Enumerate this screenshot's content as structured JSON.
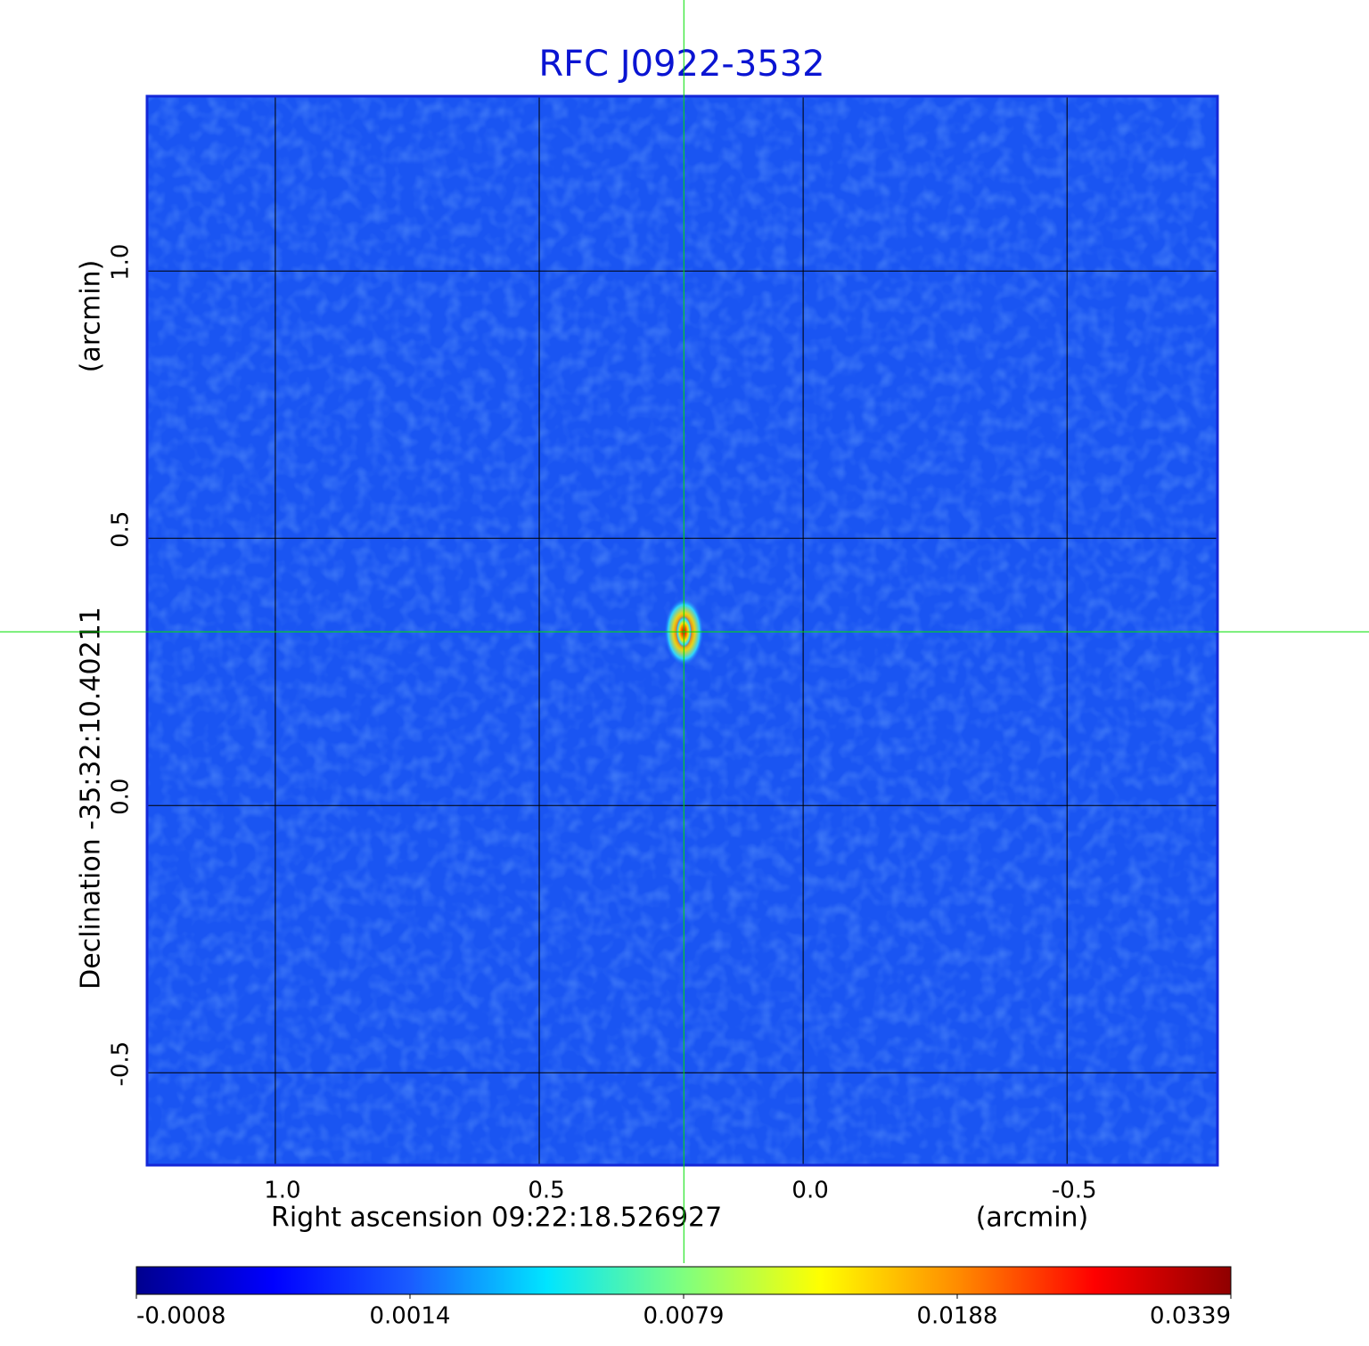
{
  "chart_data": {
    "type": "image",
    "title": "RFC J0922-3532",
    "x_label": "Right ascension  09:22:18.526927",
    "x_unit": "(arcmin)",
    "y_label": "Declination  -35:32:10.40211",
    "y_unit": "(arcmin)",
    "xlim": [
      1.243,
      -0.785
    ],
    "ylim": [
      -0.673,
      1.327
    ],
    "xticks": [
      {
        "value": 1,
        "label": "1.0"
      },
      {
        "value": 0.5,
        "label": "0.5"
      },
      {
        "value": 0,
        "label": "0.0"
      },
      {
        "value": -0.5,
        "label": "-0.5"
      }
    ],
    "yticks": [
      {
        "value": 1,
        "label": "1.0"
      },
      {
        "value": 0.5,
        "label": "0.5"
      },
      {
        "value": 0,
        "label": "0.0"
      },
      {
        "value": -0.5,
        "label": "-0.5"
      }
    ],
    "grid": true,
    "crosshair": {
      "x": 0.226,
      "y": 0.325,
      "color": "#00e000"
    },
    "colorbar": {
      "ticks": [
        -0.0008,
        0.0014,
        0.0079,
        0.0188,
        0.0339
      ],
      "colors": [
        "#00008f",
        "#0000ff",
        "#1a5cff",
        "#00e5ff",
        "#7fff7f",
        "#ffff00",
        "#ff8c00",
        "#ff0000",
        "#8f0000"
      ]
    }
  }
}
